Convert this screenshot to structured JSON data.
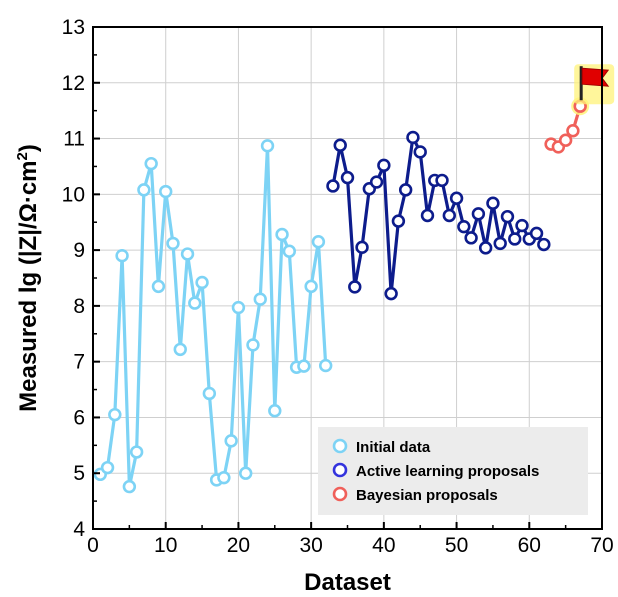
{
  "chart_data": {
    "type": "line",
    "xlabel": "Dataset",
    "ylabel_parts": [
      "Measured lg (|Z|/Ω·cm",
      "2",
      ")"
    ],
    "xlim": [
      0,
      70
    ],
    "ylim": [
      4,
      13
    ],
    "xticks": [
      0,
      10,
      20,
      30,
      40,
      50,
      60,
      70
    ],
    "yticks": [
      4,
      5,
      6,
      7,
      8,
      9,
      10,
      11,
      12,
      13
    ],
    "grid": true,
    "legend_position": "bottom-right",
    "series": [
      {
        "name": "Initial data",
        "color": "#7dd3f5",
        "x": [
          1,
          2,
          3,
          4,
          5,
          6,
          7,
          8,
          9,
          10,
          11,
          12,
          13,
          14,
          15,
          16,
          17,
          18,
          19,
          20,
          21,
          22,
          23,
          24,
          25,
          26,
          27,
          28,
          29,
          30,
          31,
          32
        ],
        "y": [
          4.98,
          5.1,
          6.05,
          8.9,
          4.76,
          5.38,
          10.08,
          10.55,
          8.35,
          10.05,
          9.12,
          7.22,
          8.93,
          8.05,
          8.42,
          6.43,
          4.88,
          4.92,
          5.58,
          7.97,
          5.0,
          7.3,
          8.12,
          10.87,
          6.12,
          9.28,
          8.98,
          6.9,
          6.92,
          8.35,
          9.15,
          6.93
        ]
      },
      {
        "name": "Active learning proposals",
        "color": "#0d1c8c",
        "x": [
          33,
          34,
          35,
          36,
          37,
          38,
          39,
          40,
          41,
          42,
          43,
          44,
          45,
          46,
          47,
          48,
          49,
          50,
          51,
          52,
          53,
          54,
          55,
          56,
          57,
          58,
          59,
          60,
          61,
          62
        ],
        "y": [
          10.15,
          10.88,
          10.3,
          8.34,
          9.05,
          10.1,
          10.22,
          10.52,
          8.22,
          9.52,
          10.08,
          11.02,
          10.76,
          9.62,
          10.25,
          10.25,
          9.62,
          9.93,
          9.42,
          9.22,
          9.65,
          9.04,
          9.84,
          9.12,
          9.6,
          9.2,
          9.44,
          9.2,
          9.3,
          9.1
        ]
      },
      {
        "name": "Bayesian proposals",
        "color": "#f0605a",
        "x": [
          63,
          64,
          65,
          66,
          67
        ],
        "y": [
          10.9,
          10.85,
          10.97,
          11.14,
          11.58
        ]
      }
    ],
    "annotations": [
      {
        "type": "red-flag-icon",
        "x": 67,
        "y": 11.58
      }
    ]
  }
}
